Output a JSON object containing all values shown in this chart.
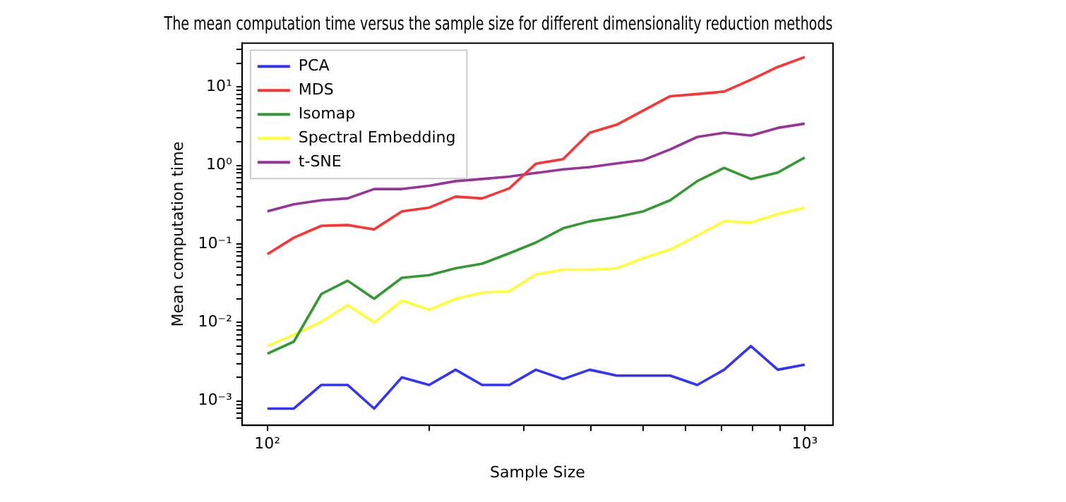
{
  "chart_data": {
    "type": "line",
    "title": "The mean computation time versus the sample size for different dimensionality reduction methods",
    "xlabel": "Sample Size",
    "ylabel": "Mean computation time",
    "x": [
      100,
      112,
      126,
      141,
      158,
      178,
      200,
      224,
      251,
      282,
      316,
      355,
      398,
      447,
      501,
      562,
      631,
      708,
      794,
      891,
      1000
    ],
    "series": [
      {
        "name": "PCA",
        "color": "#3333ff",
        "values": [
          0.0008,
          0.0008,
          0.0016,
          0.0016,
          0.0008,
          0.002,
          0.0016,
          0.0025,
          0.0016,
          0.0016,
          0.0025,
          0.0019,
          0.0025,
          0.0021,
          0.0021,
          0.0021,
          0.0016,
          0.0025,
          0.005,
          0.0025,
          0.0029
        ]
      },
      {
        "name": "MDS",
        "color": "#ff3333",
        "values": [
          0.074,
          0.12,
          0.17,
          0.174,
          0.153,
          0.26,
          0.29,
          0.4,
          0.38,
          0.51,
          1.05,
          1.2,
          2.6,
          3.3,
          5.0,
          7.6,
          8.1,
          8.7,
          12.3,
          17.9,
          24
        ]
      },
      {
        "name": "Isomap",
        "color": "#339933",
        "values": [
          0.004,
          0.0057,
          0.023,
          0.034,
          0.02,
          0.037,
          0.04,
          0.049,
          0.056,
          0.076,
          0.104,
          0.158,
          0.194,
          0.22,
          0.26,
          0.36,
          0.63,
          0.93,
          0.67,
          0.81,
          1.26
        ]
      },
      {
        "name": "Spectral Embedding",
        "color": "#ffff33",
        "values": [
          0.005,
          0.007,
          0.0102,
          0.0166,
          0.01,
          0.019,
          0.0145,
          0.02,
          0.024,
          0.025,
          0.041,
          0.047,
          0.047,
          0.049,
          0.066,
          0.085,
          0.128,
          0.194,
          0.187,
          0.24,
          0.29
        ]
      },
      {
        "name": "t-SNE",
        "color": "#993399",
        "values": [
          0.26,
          0.32,
          0.36,
          0.38,
          0.5,
          0.5,
          0.55,
          0.63,
          0.67,
          0.72,
          0.8,
          0.89,
          0.95,
          1.06,
          1.17,
          1.6,
          2.3,
          2.6,
          2.4,
          3.0,
          3.4
        ]
      }
    ],
    "log": "xy",
    "xlim": [
      89.7,
      1129
    ],
    "ylim": [
      0.00049,
      36
    ],
    "xticks": [
      {
        "value": 100,
        "label": "10²"
      },
      {
        "value": 200,
        "label": null
      },
      {
        "value": 300,
        "label": null
      },
      {
        "value": 400,
        "label": null
      },
      {
        "value": 500,
        "label": null
      },
      {
        "value": 600,
        "label": null
      },
      {
        "value": 700,
        "label": null
      },
      {
        "value": 800,
        "label": null
      },
      {
        "value": 900,
        "label": null
      },
      {
        "value": 1000,
        "label": "10³"
      }
    ],
    "yticks": [
      {
        "value": 0.0006,
        "label": null
      },
      {
        "value": 0.0007,
        "label": null
      },
      {
        "value": 0.0008,
        "label": null
      },
      {
        "value": 0.0009,
        "label": null
      },
      {
        "value": 0.001,
        "label": "10⁻³"
      },
      {
        "value": 0.002,
        "label": null
      },
      {
        "value": 0.003,
        "label": null
      },
      {
        "value": 0.004,
        "label": null
      },
      {
        "value": 0.005,
        "label": null
      },
      {
        "value": 0.006,
        "label": null
      },
      {
        "value": 0.007,
        "label": null
      },
      {
        "value": 0.008,
        "label": null
      },
      {
        "value": 0.009,
        "label": null
      },
      {
        "value": 0.01,
        "label": "10⁻²"
      },
      {
        "value": 0.02,
        "label": null
      },
      {
        "value": 0.03,
        "label": null
      },
      {
        "value": 0.04,
        "label": null
      },
      {
        "value": 0.05,
        "label": null
      },
      {
        "value": 0.06,
        "label": null
      },
      {
        "value": 0.07,
        "label": null
      },
      {
        "value": 0.08,
        "label": null
      },
      {
        "value": 0.09,
        "label": null
      },
      {
        "value": 0.1,
        "label": "10⁻¹"
      },
      {
        "value": 0.2,
        "label": null
      },
      {
        "value": 0.3,
        "label": null
      },
      {
        "value": 0.4,
        "label": null
      },
      {
        "value": 0.5,
        "label": null
      },
      {
        "value": 0.6,
        "label": null
      },
      {
        "value": 0.7,
        "label": null
      },
      {
        "value": 0.8,
        "label": null
      },
      {
        "value": 0.9,
        "label": null
      },
      {
        "value": 1,
        "label": "10⁰"
      },
      {
        "value": 2,
        "label": null
      },
      {
        "value": 3,
        "label": null
      },
      {
        "value": 4,
        "label": null
      },
      {
        "value": 5,
        "label": null
      },
      {
        "value": 6,
        "label": null
      },
      {
        "value": 7,
        "label": null
      },
      {
        "value": 8,
        "label": null
      },
      {
        "value": 9,
        "label": null
      },
      {
        "value": 10,
        "label": "10¹"
      },
      {
        "value": 20,
        "label": null
      },
      {
        "value": 30,
        "label": null
      }
    ],
    "grid": false,
    "legend": "top left",
    "marker": "none",
    "line_style": "solid"
  }
}
